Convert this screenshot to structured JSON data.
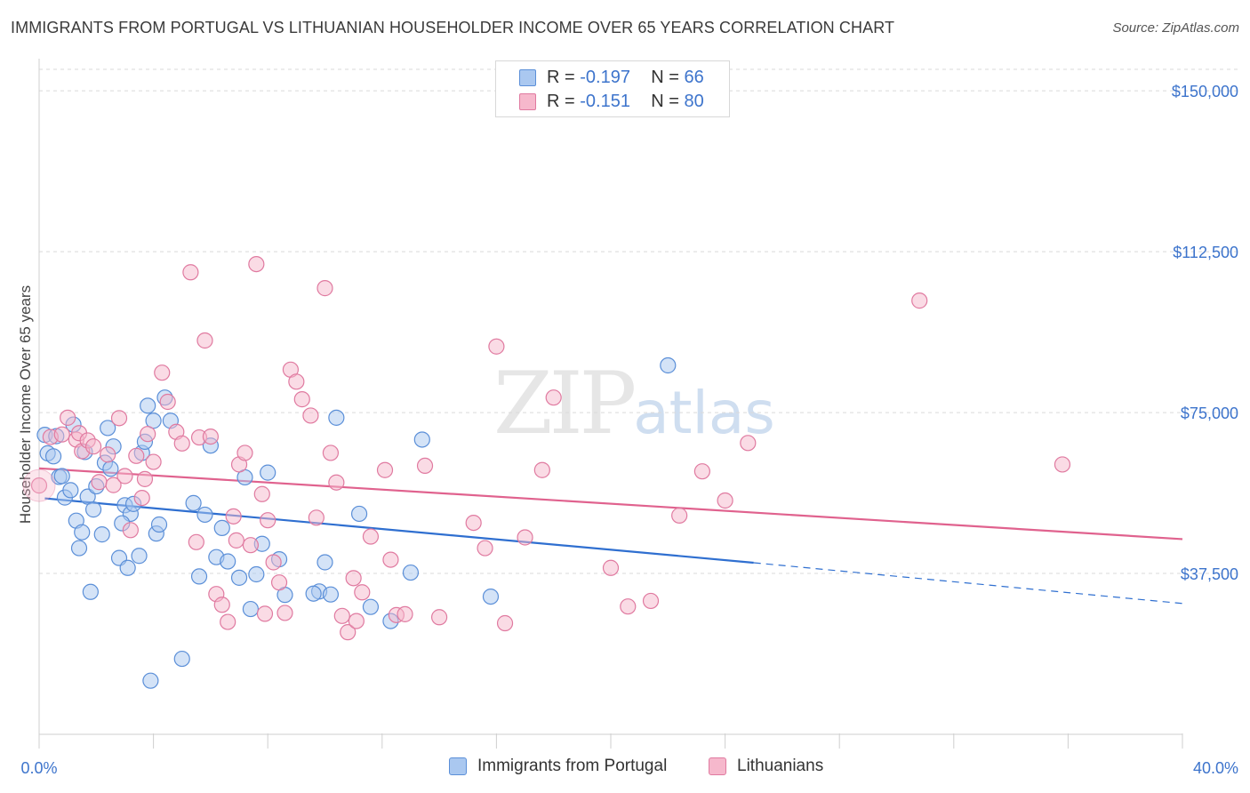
{
  "title": "IMMIGRANTS FROM PORTUGAL VS LITHUANIAN HOUSEHOLDER INCOME OVER 65 YEARS CORRELATION CHART",
  "source": "Source: ZipAtlas.com",
  "watermark": {
    "zip": "ZIP",
    "atlas": "atlas"
  },
  "legend": {
    "rows": [
      {
        "r_label": "R =",
        "r_value": "-0.197",
        "n_label": "N =",
        "n_value": "66",
        "color": "#aac8f0"
      },
      {
        "r_label": "R =",
        "r_value": "-0.151",
        "n_label": "N =",
        "n_value": "80",
        "color": "#f6b8cc"
      }
    ]
  },
  "chart_data": {
    "type": "scatter",
    "title": "IMMIGRANTS FROM PORTUGAL VS LITHUANIAN HOUSEHOLDER INCOME OVER 65 YEARS CORRELATION CHART",
    "xlabel": "",
    "ylabel": "Householder Income Over 65 years",
    "xlim": [
      0,
      40
    ],
    "ylim": [
      0,
      155000
    ],
    "x_tick_labels": [
      "0.0%",
      "40.0%"
    ],
    "y_ticks": [
      37500,
      75000,
      112500,
      150000
    ],
    "y_tick_labels": [
      "$37,500",
      "$75,000",
      "$112,500",
      "$150,000"
    ],
    "grid": true,
    "legend_position": "top-center",
    "series": [
      {
        "name": "Immigrants from Portugal",
        "color": "#5b8fd8",
        "fill": "#aac8f0",
        "trend": {
          "x": [
            0.2,
            25.0
          ],
          "y": [
            55000,
            40000
          ],
          "dashed_to": [
            40.0,
            30500
          ],
          "color": "#2f6fd0"
        },
        "points": [
          [
            0.2,
            69800
          ],
          [
            0.3,
            65500
          ],
          [
            0.5,
            64800
          ],
          [
            0.6,
            69500
          ],
          [
            0.7,
            60000
          ],
          [
            0.8,
            60200
          ],
          [
            0.9,
            55200
          ],
          [
            1.1,
            56900
          ],
          [
            1.2,
            72200
          ],
          [
            1.3,
            49800
          ],
          [
            1.4,
            43400
          ],
          [
            1.5,
            47100
          ],
          [
            1.6,
            65800
          ],
          [
            1.7,
            55400
          ],
          [
            1.8,
            33200
          ],
          [
            1.9,
            52400
          ],
          [
            2.0,
            57800
          ],
          [
            2.2,
            46600
          ],
          [
            2.3,
            63300
          ],
          [
            2.4,
            71400
          ],
          [
            2.5,
            61900
          ],
          [
            2.6,
            67100
          ],
          [
            2.8,
            41100
          ],
          [
            3.0,
            53400
          ],
          [
            3.1,
            38800
          ],
          [
            3.2,
            51400
          ],
          [
            3.3,
            53700
          ],
          [
            3.5,
            41600
          ],
          [
            3.6,
            65600
          ],
          [
            3.7,
            68200
          ],
          [
            3.8,
            76600
          ],
          [
            4.0,
            73100
          ],
          [
            4.1,
            46800
          ],
          [
            4.2,
            48900
          ],
          [
            4.4,
            78500
          ],
          [
            4.6,
            73100
          ],
          [
            5.0,
            17600
          ],
          [
            5.4,
            53900
          ],
          [
            5.8,
            51200
          ],
          [
            6.0,
            67300
          ],
          [
            6.2,
            41300
          ],
          [
            6.4,
            48100
          ],
          [
            6.6,
            40300
          ],
          [
            7.0,
            36500
          ],
          [
            7.2,
            59900
          ],
          [
            7.4,
            29200
          ],
          [
            7.6,
            37300
          ],
          [
            7.8,
            44400
          ],
          [
            8.0,
            61000
          ],
          [
            8.4,
            40800
          ],
          [
            8.6,
            32500
          ],
          [
            9.8,
            33300
          ],
          [
            10.0,
            40100
          ],
          [
            10.4,
            73800
          ],
          [
            11.2,
            51400
          ],
          [
            11.6,
            29700
          ],
          [
            12.3,
            26400
          ],
          [
            13.0,
            37700
          ],
          [
            13.4,
            68700
          ],
          [
            15.8,
            32100
          ],
          [
            22.0,
            86000
          ],
          [
            3.9,
            12500
          ],
          [
            10.2,
            32600
          ],
          [
            5.6,
            36800
          ],
          [
            2.9,
            49200
          ],
          [
            9.6,
            32800
          ]
        ]
      },
      {
        "name": "Lithuanians",
        "color": "#e07aa0",
        "fill": "#f6b8cc",
        "trend": {
          "x": [
            0.0,
            40.0
          ],
          "y": [
            62000,
            45500
          ],
          "color": "#e0628e"
        },
        "points": [
          [
            0.0,
            58000
          ],
          [
            0.4,
            69300
          ],
          [
            0.8,
            69900
          ],
          [
            1.0,
            73800
          ],
          [
            1.3,
            68700
          ],
          [
            1.4,
            70200
          ],
          [
            1.5,
            66000
          ],
          [
            1.7,
            68500
          ],
          [
            1.9,
            67100
          ],
          [
            2.1,
            58800
          ],
          [
            2.4,
            65200
          ],
          [
            2.6,
            58100
          ],
          [
            2.8,
            73700
          ],
          [
            3.0,
            60200
          ],
          [
            3.2,
            47600
          ],
          [
            3.4,
            64900
          ],
          [
            3.6,
            55100
          ],
          [
            3.8,
            70000
          ],
          [
            4.0,
            63500
          ],
          [
            4.3,
            84300
          ],
          [
            4.5,
            77500
          ],
          [
            4.8,
            70500
          ],
          [
            5.0,
            67800
          ],
          [
            5.3,
            107700
          ],
          [
            5.6,
            69200
          ],
          [
            5.8,
            91800
          ],
          [
            6.0,
            69400
          ],
          [
            6.2,
            32700
          ],
          [
            6.4,
            30200
          ],
          [
            6.6,
            26200
          ],
          [
            6.8,
            50800
          ],
          [
            7.0,
            62900
          ],
          [
            7.2,
            65600
          ],
          [
            7.4,
            44100
          ],
          [
            7.6,
            109600
          ],
          [
            7.8,
            56000
          ],
          [
            8.0,
            49900
          ],
          [
            8.2,
            40100
          ],
          [
            8.4,
            35400
          ],
          [
            8.6,
            28300
          ],
          [
            8.8,
            85000
          ],
          [
            9.0,
            82200
          ],
          [
            9.2,
            78100
          ],
          [
            9.5,
            74300
          ],
          [
            9.7,
            50500
          ],
          [
            10.0,
            104000
          ],
          [
            10.2,
            65600
          ],
          [
            10.4,
            58700
          ],
          [
            10.6,
            27600
          ],
          [
            10.8,
            23800
          ],
          [
            11.0,
            36400
          ],
          [
            11.3,
            33100
          ],
          [
            11.6,
            46100
          ],
          [
            12.1,
            61600
          ],
          [
            12.3,
            40700
          ],
          [
            12.5,
            27800
          ],
          [
            13.5,
            62600
          ],
          [
            14.0,
            27300
          ],
          [
            15.2,
            49300
          ],
          [
            15.6,
            43400
          ],
          [
            16.0,
            90400
          ],
          [
            16.3,
            25900
          ],
          [
            17.0,
            45900
          ],
          [
            17.6,
            61600
          ],
          [
            18.0,
            78500
          ],
          [
            20.0,
            38800
          ],
          [
            20.6,
            29800
          ],
          [
            21.4,
            31100
          ],
          [
            22.4,
            51000
          ],
          [
            23.2,
            61300
          ],
          [
            24.0,
            54500
          ],
          [
            24.8,
            67900
          ],
          [
            30.8,
            101100
          ],
          [
            35.8,
            62900
          ],
          [
            7.9,
            28100
          ],
          [
            6.9,
            45200
          ],
          [
            3.7,
            59500
          ],
          [
            12.8,
            28000
          ],
          [
            11.1,
            26400
          ],
          [
            5.5,
            44800
          ]
        ]
      }
    ]
  },
  "bottom_legend": {
    "items": [
      {
        "label": "Immigrants from Portugal",
        "color": "#aac8f0",
        "border": "#5b8fd8"
      },
      {
        "label": "Lithuanians",
        "color": "#f6b8cc",
        "border": "#e07aa0"
      }
    ]
  }
}
